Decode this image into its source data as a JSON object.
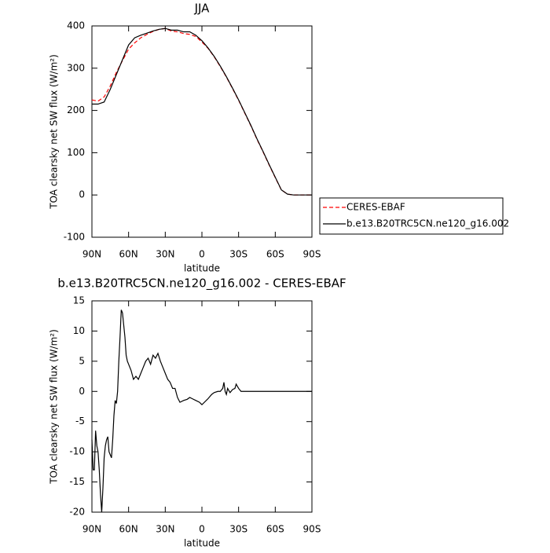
{
  "chart_data": [
    {
      "type": "line",
      "title": "JJA",
      "xlabel": "latitude",
      "ylabel": "TOA clearsky net SW flux (W/m²)",
      "x": [
        90,
        85,
        80,
        75,
        70,
        65,
        60,
        55,
        50,
        45,
        40,
        35,
        30,
        25,
        20,
        15,
        10,
        5,
        0,
        -5,
        -10,
        -15,
        -20,
        -25,
        -30,
        -35,
        -40,
        -45,
        -50,
        -55,
        -60,
        -65,
        -70,
        -75,
        -80,
        -85,
        -90
      ],
      "series": [
        {
          "name": "CERES-EBAF",
          "color": "#ff0000",
          "line_style": "dashed",
          "values": [
            225,
            222,
            232,
            258,
            290,
            318,
            345,
            360,
            372,
            380,
            387,
            392,
            394,
            388,
            386,
            382,
            380,
            375,
            362,
            347,
            327,
            304,
            279,
            252,
            224,
            194,
            164,
            132,
            102,
            71,
            41,
            12,
            2,
            0,
            0,
            0,
            0
          ]
        },
        {
          "name": "b.e13.B20TRC5CN.ne120_g16.002",
          "color": "#000000",
          "line_style": "solid",
          "values": [
            215,
            215,
            220,
            250,
            285,
            320,
            355,
            372,
            378,
            383,
            388,
            392,
            394,
            390,
            390,
            386,
            386,
            378,
            365,
            348,
            328,
            305,
            280,
            253,
            225,
            195,
            165,
            133,
            103,
            72,
            42,
            12,
            2,
            0,
            0,
            0,
            0
          ]
        }
      ],
      "xlim": [
        90,
        -90
      ],
      "xticks": [
        {
          "value": 90,
          "label": "90N"
        },
        {
          "value": 60,
          "label": "60N"
        },
        {
          "value": 30,
          "label": "30N"
        },
        0,
        {
          "value": -30,
          "label": "30S"
        },
        {
          "value": -60,
          "label": "60S"
        },
        {
          "value": -90,
          "label": "90S"
        }
      ],
      "ylim": [
        -100,
        400
      ],
      "yticks": [
        -100,
        0,
        100,
        200,
        300,
        400
      ],
      "legend": "outside-right-bottom"
    },
    {
      "type": "line",
      "title": "b.e13.B20TRC5CN.ne120_g16.002 - CERES-EBAF",
      "xlabel": "latitude",
      "ylabel": "TOA clearsky net SW flux (W/m²)",
      "x": [
        90,
        89,
        88,
        87,
        86,
        85,
        84,
        83,
        82,
        81,
        80,
        79,
        78,
        77,
        76,
        75,
        74,
        73,
        72,
        71,
        70,
        69,
        68,
        67,
        66,
        65,
        64,
        63,
        62,
        61,
        60,
        58,
        56,
        54,
        52,
        50,
        48,
        46,
        44,
        42,
        40,
        38,
        36,
        34,
        32,
        30,
        28,
        26,
        24,
        22,
        20,
        18,
        15,
        12,
        10,
        8,
        5,
        2,
        0,
        -2,
        -5,
        -8,
        -10,
        -13,
        -15,
        -17,
        -18,
        -19,
        -20,
        -21,
        -23,
        -25,
        -27,
        -28,
        -30,
        -32,
        -90
      ],
      "values": [
        -8,
        -13,
        -13,
        -6.5,
        -9,
        -10,
        -13,
        -17,
        -20,
        -16,
        -11,
        -9,
        -8,
        -7.5,
        -10,
        -10.5,
        -11,
        -8,
        -4,
        -1.5,
        -2,
        0,
        5,
        9,
        13.5,
        13,
        11,
        9,
        6,
        5,
        4.5,
        3.5,
        2,
        2.5,
        2,
        3,
        4,
        5,
        5.5,
        4.5,
        6,
        5.5,
        6.3,
        5,
        4,
        3,
        2,
        1.5,
        0.5,
        0.5,
        -1,
        -1.8,
        -1.5,
        -1.3,
        -1,
        -1.2,
        -1.5,
        -1.8,
        -2.2,
        -1.8,
        -1.2,
        -0.5,
        -0.2,
        0,
        0,
        0.5,
        1.5,
        0,
        -0.5,
        0.5,
        -0.2,
        0.3,
        0.5,
        1.2,
        0.5,
        0,
        0
      ],
      "color": "#000000",
      "xlim": [
        90,
        -90
      ],
      "xticks": [
        {
          "value": 90,
          "label": "90N"
        },
        {
          "value": 60,
          "label": "60N"
        },
        {
          "value": 30,
          "label": "30N"
        },
        0,
        {
          "value": -30,
          "label": "30S"
        },
        {
          "value": -60,
          "label": "60S"
        },
        {
          "value": -90,
          "label": "90S"
        }
      ],
      "ylim": [
        -20,
        15
      ],
      "yticks": [
        -20,
        -15,
        -10,
        -5,
        0,
        5,
        10,
        15
      ]
    }
  ]
}
